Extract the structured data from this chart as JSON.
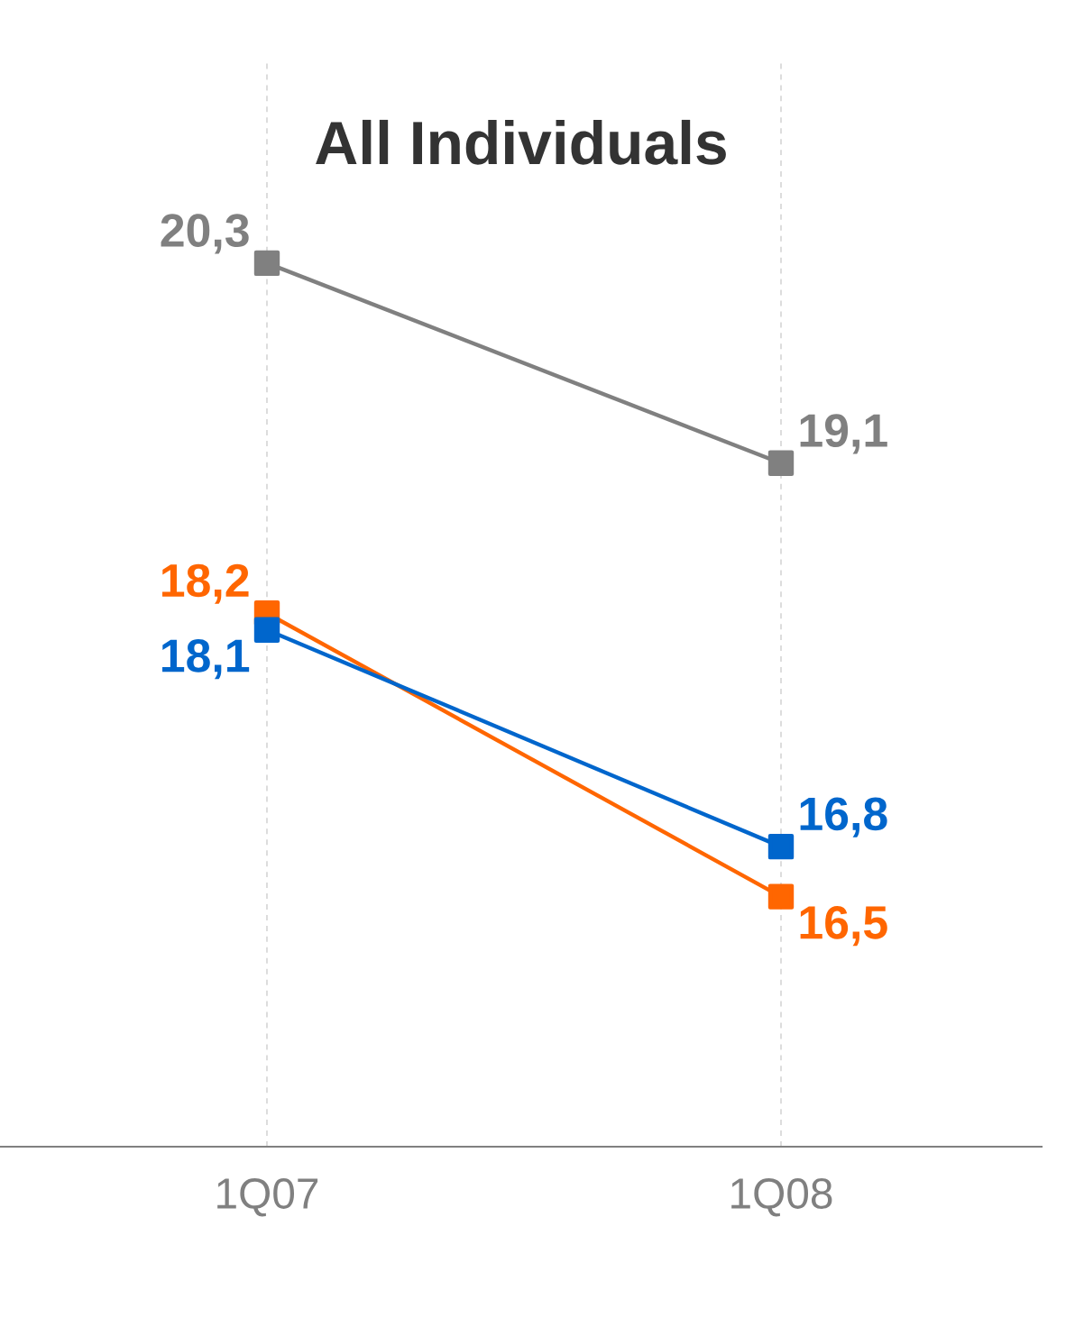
{
  "chart_data": {
    "type": "line",
    "title": "All Individuals",
    "categories": [
      "1Q07",
      "1Q08"
    ],
    "series": [
      {
        "color": "#808080",
        "values": [
          20.3,
          19.1
        ],
        "value_labels": [
          "20,3",
          "19,1"
        ]
      },
      {
        "color": "#ff6600",
        "values": [
          18.2,
          16.5
        ],
        "value_labels": [
          "18,2",
          "16,5"
        ]
      },
      {
        "color": "#0066cc",
        "values": [
          18.1,
          16.8
        ],
        "value_labels": [
          "18,1",
          "16,8"
        ]
      }
    ],
    "ylim": [
      15,
      21.5
    ],
    "grid": "x",
    "marker": "square",
    "line_style": "solid"
  }
}
